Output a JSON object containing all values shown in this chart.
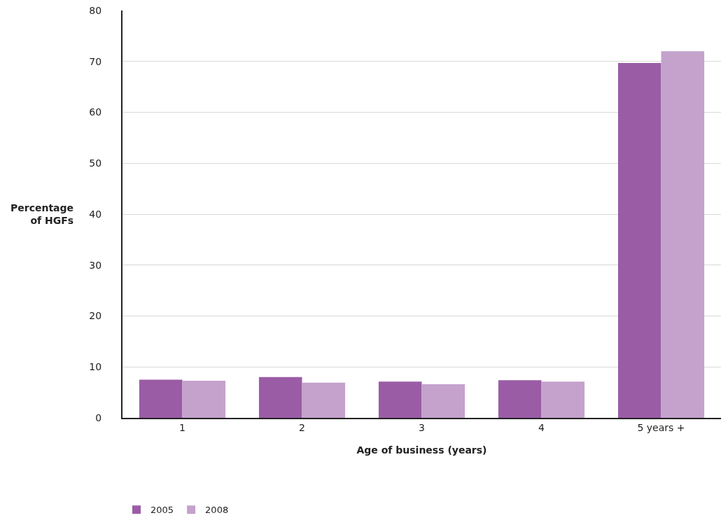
{
  "chart_data": {
    "type": "bar",
    "xlabel": "Age of business (years)",
    "ylabel": "Percentage of HGFs",
    "categories": [
      "1",
      "2",
      "3",
      "4",
      "5 years +"
    ],
    "series": [
      {
        "name": "2005",
        "color": "#9b5ca6",
        "values": [
          7.5,
          8.0,
          7.1,
          7.4,
          69.7
        ]
      },
      {
        "name": "2008",
        "color": "#c4a2cc",
        "values": [
          7.3,
          6.9,
          6.6,
          7.1,
          72.0
        ]
      }
    ],
    "ylim": [
      0,
      80
    ],
    "yticks": [
      0,
      10,
      20,
      30,
      40,
      50,
      60,
      70,
      80
    ],
    "grid": "y",
    "legend": "bottom left"
  }
}
